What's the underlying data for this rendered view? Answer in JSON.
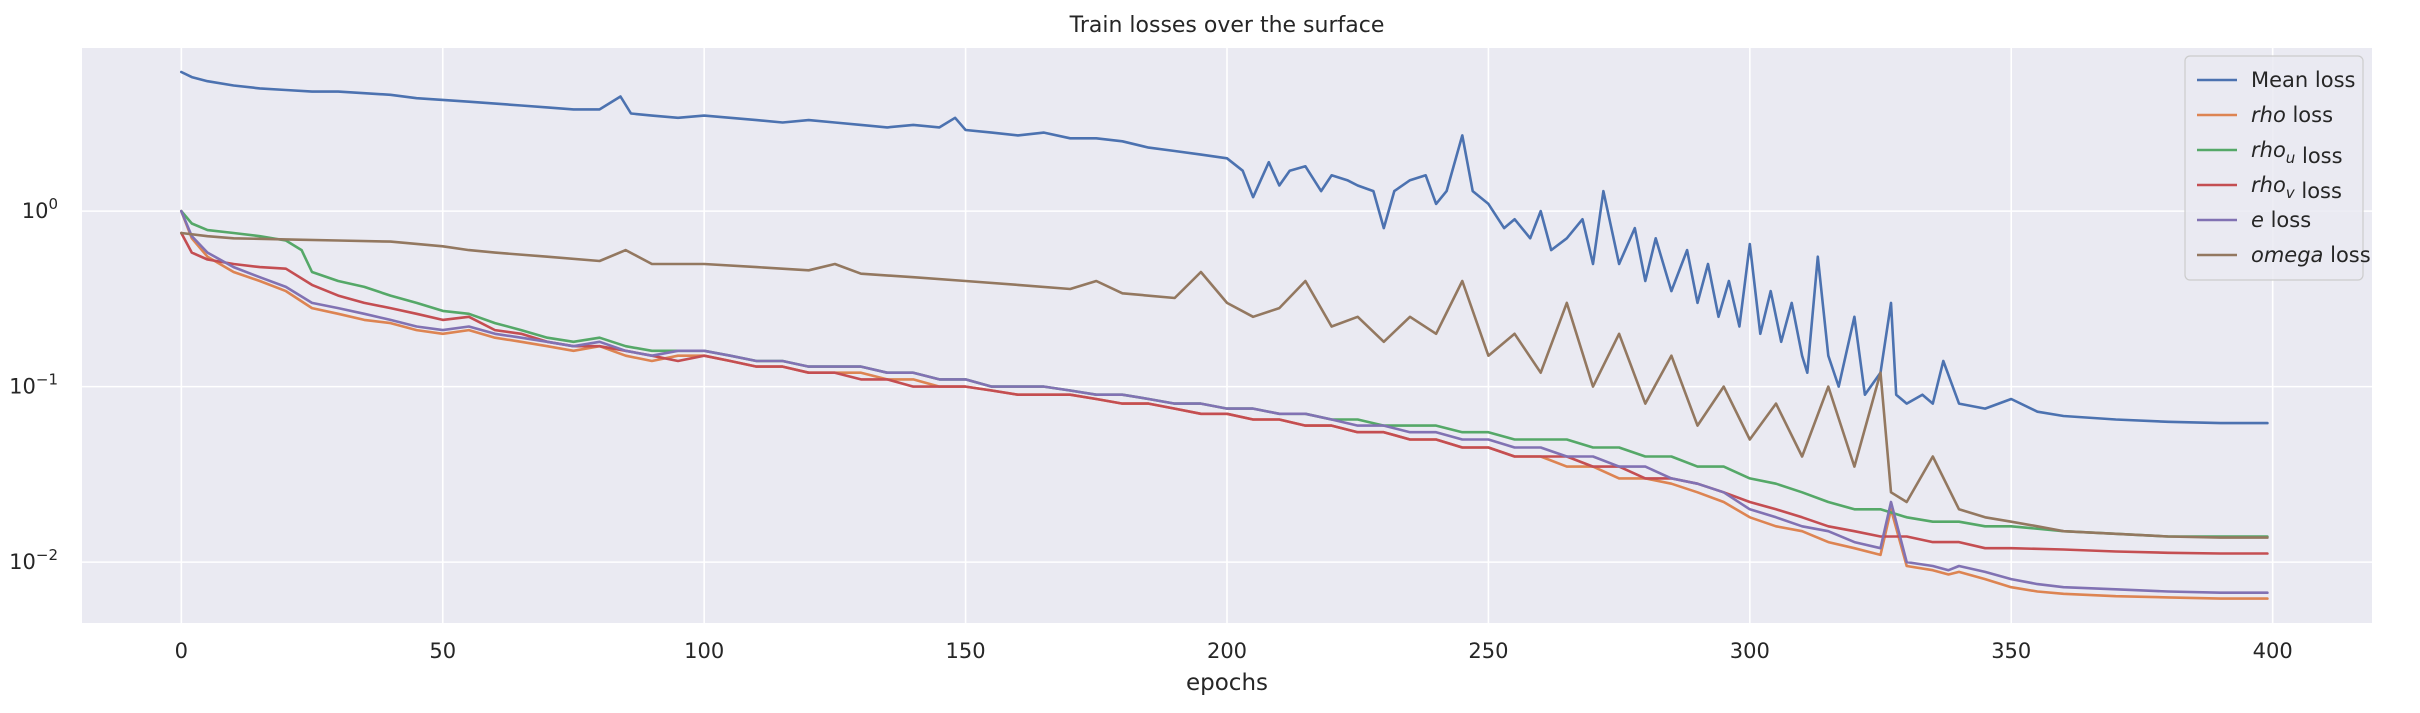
{
  "chart_data": {
    "type": "line",
    "title": "Train losses over the surface",
    "xlabel": "epochs",
    "ylabel": "",
    "yscale": "log",
    "xlim": [
      -19,
      419
    ],
    "ylim": [
      0.0045,
      8.5
    ],
    "xticks": [
      0,
      50,
      100,
      150,
      200,
      250,
      300,
      350,
      400
    ],
    "xtick_labels": [
      "0",
      "50",
      "100",
      "150",
      "200",
      "250",
      "300",
      "350",
      "400"
    ],
    "yticks": [
      0.01,
      0.1,
      1
    ],
    "ytick_labels": [
      {
        "base": "10",
        "exp": "−2"
      },
      {
        "base": "10",
        "exp": "−1"
      },
      {
        "base": "10",
        "exp": "0"
      }
    ],
    "grid": true,
    "legend_position": "top-right",
    "series": [
      {
        "name": "Mean loss",
        "legend_parts": [
          {
            "text": "Mean loss",
            "style": "normal"
          }
        ],
        "color": "#4c72b0",
        "x": [
          0,
          2,
          5,
          10,
          15,
          20,
          25,
          30,
          35,
          40,
          45,
          50,
          55,
          60,
          65,
          70,
          75,
          80,
          84,
          86,
          90,
          95,
          100,
          105,
          110,
          115,
          120,
          125,
          130,
          135,
          140,
          145,
          148,
          150,
          155,
          160,
          165,
          170,
          175,
          180,
          185,
          190,
          195,
          200,
          203,
          205,
          208,
          210,
          212,
          215,
          218,
          220,
          223,
          225,
          228,
          230,
          232,
          235,
          238,
          240,
          242,
          245,
          247,
          250,
          253,
          255,
          258,
          260,
          262,
          265,
          268,
          270,
          272,
          275,
          278,
          280,
          282,
          285,
          288,
          290,
          292,
          294,
          296,
          298,
          300,
          302,
          304,
          306,
          308,
          310,
          311,
          313,
          315,
          317,
          320,
          322,
          325,
          327,
          328,
          330,
          333,
          335,
          337,
          340,
          345,
          350,
          355,
          360,
          370,
          380,
          390,
          399
        ],
        "y": [
          6.2,
          5.8,
          5.5,
          5.2,
          5.0,
          4.9,
          4.8,
          4.8,
          4.7,
          4.6,
          4.4,
          4.3,
          4.2,
          4.1,
          4.0,
          3.9,
          3.8,
          3.8,
          4.5,
          3.6,
          3.5,
          3.4,
          3.5,
          3.4,
          3.3,
          3.2,
          3.3,
          3.2,
          3.1,
          3.0,
          3.1,
          3.0,
          3.4,
          2.9,
          2.8,
          2.7,
          2.8,
          2.6,
          2.6,
          2.5,
          2.3,
          2.2,
          2.1,
          2.0,
          1.7,
          1.2,
          1.9,
          1.4,
          1.7,
          1.8,
          1.3,
          1.6,
          1.5,
          1.4,
          1.3,
          0.8,
          1.3,
          1.5,
          1.6,
          1.1,
          1.3,
          2.7,
          1.3,
          1.1,
          0.8,
          0.9,
          0.7,
          1.0,
          0.6,
          0.7,
          0.9,
          0.5,
          1.3,
          0.5,
          0.8,
          0.4,
          0.7,
          0.35,
          0.6,
          0.3,
          0.5,
          0.25,
          0.4,
          0.22,
          0.65,
          0.2,
          0.35,
          0.18,
          0.3,
          0.15,
          0.12,
          0.55,
          0.15,
          0.1,
          0.25,
          0.09,
          0.12,
          0.3,
          0.09,
          0.08,
          0.09,
          0.08,
          0.14,
          0.08,
          0.075,
          0.085,
          0.072,
          0.068,
          0.065,
          0.063,
          0.062,
          0.062
        ]
      },
      {
        "name": "rho loss",
        "legend_parts": [
          {
            "text": "rho",
            "style": "italic"
          },
          {
            "text": " loss",
            "style": "normal"
          }
        ],
        "color": "#dd8452",
        "x": [
          0,
          2,
          5,
          10,
          15,
          20,
          25,
          30,
          35,
          40,
          45,
          50,
          55,
          60,
          65,
          70,
          75,
          80,
          85,
          90,
          95,
          100,
          105,
          110,
          115,
          120,
          125,
          130,
          135,
          140,
          145,
          150,
          155,
          160,
          165,
          170,
          175,
          180,
          185,
          190,
          195,
          200,
          205,
          210,
          215,
          220,
          225,
          230,
          235,
          240,
          245,
          250,
          255,
          260,
          265,
          270,
          275,
          280,
          285,
          290,
          295,
          300,
          305,
          310,
          315,
          320,
          325,
          327,
          330,
          335,
          338,
          340,
          345,
          350,
          355,
          360,
          370,
          380,
          390,
          399
        ],
        "y": [
          1.0,
          0.7,
          0.55,
          0.45,
          0.4,
          0.35,
          0.28,
          0.26,
          0.24,
          0.23,
          0.21,
          0.2,
          0.21,
          0.19,
          0.18,
          0.17,
          0.16,
          0.17,
          0.15,
          0.14,
          0.15,
          0.15,
          0.14,
          0.13,
          0.13,
          0.12,
          0.12,
          0.12,
          0.11,
          0.11,
          0.1,
          0.1,
          0.095,
          0.09,
          0.09,
          0.09,
          0.085,
          0.08,
          0.08,
          0.075,
          0.07,
          0.07,
          0.065,
          0.065,
          0.06,
          0.06,
          0.055,
          0.055,
          0.05,
          0.05,
          0.045,
          0.045,
          0.04,
          0.04,
          0.035,
          0.035,
          0.03,
          0.03,
          0.028,
          0.025,
          0.022,
          0.018,
          0.016,
          0.015,
          0.013,
          0.012,
          0.011,
          0.02,
          0.0095,
          0.009,
          0.0085,
          0.0088,
          0.008,
          0.0072,
          0.0068,
          0.0066,
          0.0064,
          0.0063,
          0.0062,
          0.0062
        ]
      },
      {
        "name": "rho_u loss",
        "legend_parts": [
          {
            "text": "rho",
            "style": "italic"
          },
          {
            "text": "u",
            "style": "sub"
          },
          {
            "text": " loss",
            "style": "normal"
          }
        ],
        "color": "#55a868",
        "x": [
          0,
          2,
          5,
          10,
          15,
          20,
          23,
          25,
          30,
          35,
          40,
          45,
          50,
          55,
          60,
          65,
          70,
          75,
          80,
          85,
          90,
          95,
          100,
          105,
          110,
          115,
          120,
          125,
          130,
          135,
          140,
          145,
          150,
          155,
          160,
          165,
          170,
          175,
          180,
          185,
          190,
          195,
          200,
          205,
          210,
          215,
          220,
          225,
          230,
          235,
          240,
          245,
          250,
          255,
          260,
          265,
          270,
          275,
          280,
          285,
          290,
          295,
          300,
          305,
          310,
          315,
          320,
          325,
          330,
          335,
          340,
          345,
          350,
          360,
          370,
          380,
          390,
          399
        ],
        "y": [
          1.0,
          0.85,
          0.78,
          0.75,
          0.72,
          0.68,
          0.6,
          0.45,
          0.4,
          0.37,
          0.33,
          0.3,
          0.27,
          0.26,
          0.23,
          0.21,
          0.19,
          0.18,
          0.19,
          0.17,
          0.16,
          0.16,
          0.16,
          0.15,
          0.14,
          0.14,
          0.13,
          0.13,
          0.13,
          0.12,
          0.12,
          0.11,
          0.11,
          0.1,
          0.1,
          0.1,
          0.095,
          0.09,
          0.09,
          0.085,
          0.08,
          0.08,
          0.075,
          0.075,
          0.07,
          0.07,
          0.065,
          0.065,
          0.06,
          0.06,
          0.06,
          0.055,
          0.055,
          0.05,
          0.05,
          0.05,
          0.045,
          0.045,
          0.04,
          0.04,
          0.035,
          0.035,
          0.03,
          0.028,
          0.025,
          0.022,
          0.02,
          0.02,
          0.018,
          0.017,
          0.017,
          0.016,
          0.016,
          0.015,
          0.0145,
          0.014,
          0.014,
          0.014
        ]
      },
      {
        "name": "rho_v loss",
        "legend_parts": [
          {
            "text": "rho",
            "style": "italic"
          },
          {
            "text": "v",
            "style": "sub"
          },
          {
            "text": " loss",
            "style": "normal"
          }
        ],
        "color": "#c44e52",
        "x": [
          0,
          2,
          5,
          10,
          15,
          20,
          25,
          30,
          35,
          40,
          45,
          50,
          55,
          60,
          65,
          70,
          75,
          80,
          85,
          90,
          95,
          100,
          105,
          110,
          115,
          120,
          125,
          130,
          135,
          140,
          145,
          150,
          155,
          160,
          165,
          170,
          175,
          180,
          185,
          190,
          195,
          200,
          205,
          210,
          215,
          220,
          225,
          230,
          235,
          240,
          245,
          250,
          255,
          260,
          265,
          270,
          275,
          280,
          285,
          290,
          295,
          300,
          305,
          310,
          315,
          320,
          325,
          330,
          335,
          340,
          345,
          350,
          360,
          370,
          380,
          390,
          399
        ],
        "y": [
          0.75,
          0.58,
          0.53,
          0.5,
          0.48,
          0.47,
          0.38,
          0.33,
          0.3,
          0.28,
          0.26,
          0.24,
          0.25,
          0.21,
          0.2,
          0.18,
          0.17,
          0.17,
          0.16,
          0.15,
          0.14,
          0.15,
          0.14,
          0.13,
          0.13,
          0.12,
          0.12,
          0.11,
          0.11,
          0.1,
          0.1,
          0.1,
          0.095,
          0.09,
          0.09,
          0.09,
          0.085,
          0.08,
          0.08,
          0.075,
          0.07,
          0.07,
          0.065,
          0.065,
          0.06,
          0.06,
          0.055,
          0.055,
          0.05,
          0.05,
          0.045,
          0.045,
          0.04,
          0.04,
          0.04,
          0.035,
          0.035,
          0.03,
          0.03,
          0.028,
          0.025,
          0.022,
          0.02,
          0.018,
          0.016,
          0.015,
          0.014,
          0.014,
          0.013,
          0.013,
          0.012,
          0.012,
          0.0118,
          0.0115,
          0.0113,
          0.0112,
          0.0112
        ]
      },
      {
        "name": "e loss",
        "legend_parts": [
          {
            "text": "e",
            "style": "italic"
          },
          {
            "text": " loss",
            "style": "normal"
          }
        ],
        "color": "#8172b3",
        "x": [
          0,
          2,
          5,
          10,
          15,
          20,
          25,
          30,
          35,
          40,
          45,
          50,
          55,
          60,
          65,
          70,
          75,
          80,
          85,
          90,
          95,
          100,
          105,
          110,
          115,
          120,
          125,
          130,
          135,
          140,
          145,
          150,
          155,
          160,
          165,
          170,
          175,
          180,
          185,
          190,
          195,
          200,
          205,
          210,
          215,
          220,
          225,
          230,
          235,
          240,
          245,
          250,
          255,
          260,
          265,
          270,
          275,
          280,
          285,
          290,
          295,
          300,
          305,
          310,
          315,
          320,
          325,
          327,
          330,
          335,
          338,
          340,
          345,
          350,
          355,
          360,
          370,
          380,
          390,
          399
        ],
        "y": [
          1.0,
          0.72,
          0.58,
          0.48,
          0.42,
          0.37,
          0.3,
          0.28,
          0.26,
          0.24,
          0.22,
          0.21,
          0.22,
          0.2,
          0.19,
          0.18,
          0.17,
          0.18,
          0.16,
          0.15,
          0.16,
          0.16,
          0.15,
          0.14,
          0.14,
          0.13,
          0.13,
          0.13,
          0.12,
          0.12,
          0.11,
          0.11,
          0.1,
          0.1,
          0.1,
          0.095,
          0.09,
          0.09,
          0.085,
          0.08,
          0.08,
          0.075,
          0.075,
          0.07,
          0.07,
          0.065,
          0.06,
          0.06,
          0.055,
          0.055,
          0.05,
          0.05,
          0.045,
          0.045,
          0.04,
          0.04,
          0.035,
          0.035,
          0.03,
          0.028,
          0.025,
          0.02,
          0.018,
          0.016,
          0.015,
          0.013,
          0.012,
          0.022,
          0.01,
          0.0095,
          0.009,
          0.0095,
          0.0088,
          0.008,
          0.0075,
          0.0072,
          0.007,
          0.0068,
          0.0067,
          0.0067
        ]
      },
      {
        "name": "omega loss",
        "legend_parts": [
          {
            "text": "omega",
            "style": "italic"
          },
          {
            "text": " loss",
            "style": "normal"
          }
        ],
        "color": "#937860",
        "x": [
          0,
          5,
          10,
          20,
          30,
          40,
          50,
          55,
          60,
          70,
          80,
          85,
          90,
          100,
          110,
          120,
          125,
          130,
          140,
          150,
          160,
          170,
          175,
          180,
          190,
          195,
          200,
          205,
          210,
          215,
          220,
          225,
          230,
          235,
          240,
          245,
          250,
          255,
          260,
          265,
          270,
          275,
          280,
          285,
          290,
          295,
          300,
          305,
          310,
          315,
          320,
          325,
          327,
          330,
          335,
          340,
          345,
          350,
          355,
          360,
          370,
          380,
          390,
          399
        ],
        "y": [
          0.75,
          0.72,
          0.7,
          0.69,
          0.68,
          0.67,
          0.63,
          0.6,
          0.58,
          0.55,
          0.52,
          0.6,
          0.5,
          0.5,
          0.48,
          0.46,
          0.5,
          0.44,
          0.42,
          0.4,
          0.38,
          0.36,
          0.4,
          0.34,
          0.32,
          0.45,
          0.3,
          0.25,
          0.28,
          0.4,
          0.22,
          0.25,
          0.18,
          0.25,
          0.2,
          0.4,
          0.15,
          0.2,
          0.12,
          0.3,
          0.1,
          0.2,
          0.08,
          0.15,
          0.06,
          0.1,
          0.05,
          0.08,
          0.04,
          0.1,
          0.035,
          0.12,
          0.025,
          0.022,
          0.04,
          0.02,
          0.018,
          0.017,
          0.016,
          0.015,
          0.0145,
          0.014,
          0.0138,
          0.0138
        ]
      }
    ]
  }
}
